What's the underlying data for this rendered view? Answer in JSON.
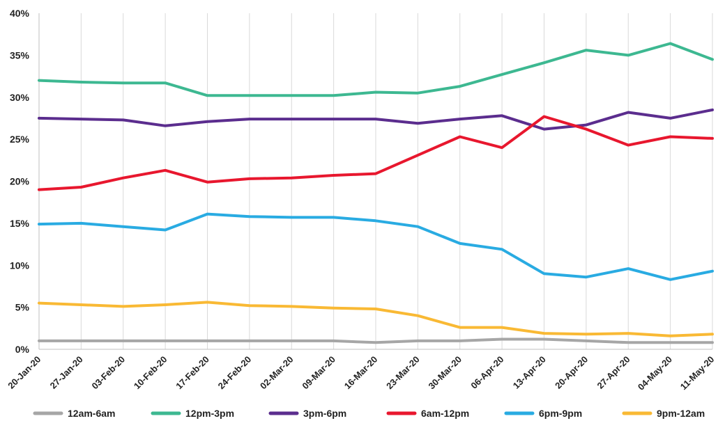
{
  "chart_data": {
    "type": "line",
    "title": "",
    "xlabel": "",
    "ylabel": "",
    "ylim": [
      0,
      40
    ],
    "y_ticks": [
      "0%",
      "5%",
      "10%",
      "15%",
      "20%",
      "25%",
      "30%",
      "35%",
      "40%"
    ],
    "y_tick_values": [
      0,
      5,
      10,
      15,
      20,
      25,
      30,
      35,
      40
    ],
    "grid": "vertical",
    "legend_position": "bottom",
    "categories": [
      "20-Jan-20",
      "27-Jan-20",
      "03-Feb-20",
      "10-Feb-20",
      "17-Feb-20",
      "24-Feb-20",
      "02-Mar-20",
      "09-Mar-20",
      "16-Mar-20",
      "23-Mar-20",
      "30-Mar-20",
      "06-Apr-20",
      "13-Apr-20",
      "20-Apr-20",
      "27-Apr-20",
      "04-May-20",
      "11-May-20"
    ],
    "series": [
      {
        "name": "12am-6am",
        "color": "#a6a6a6",
        "values": [
          1.0,
          1.0,
          1.0,
          1.0,
          1.0,
          1.0,
          1.0,
          1.0,
          0.8,
          1.0,
          1.0,
          1.2,
          1.2,
          1.0,
          0.8,
          0.8,
          0.8
        ]
      },
      {
        "name": "12pm-3pm",
        "color": "#3db891",
        "values": [
          32.0,
          31.8,
          31.7,
          31.7,
          30.2,
          30.2,
          30.2,
          30.2,
          30.6,
          30.5,
          31.3,
          32.7,
          34.1,
          35.6,
          35.0,
          36.4,
          34.5
        ]
      },
      {
        "name": "3pm-6pm",
        "color": "#5b2d8e",
        "values": [
          27.5,
          27.4,
          27.3,
          26.6,
          27.1,
          27.4,
          27.4,
          27.4,
          27.4,
          26.9,
          27.4,
          27.8,
          26.2,
          26.7,
          28.2,
          27.5,
          28.5
        ]
      },
      {
        "name": "6am-12pm",
        "color": "#e8172e",
        "values": [
          19.0,
          19.3,
          20.4,
          21.3,
          19.9,
          20.3,
          20.4,
          20.7,
          20.9,
          23.1,
          25.3,
          24.0,
          27.7,
          26.2,
          24.3,
          25.3,
          25.1
        ]
      },
      {
        "name": "6pm-9pm",
        "color": "#29abe2",
        "values": [
          14.9,
          15.0,
          14.6,
          14.2,
          16.1,
          15.8,
          15.7,
          15.7,
          15.3,
          14.6,
          12.6,
          11.9,
          9.0,
          8.6,
          9.6,
          8.3,
          9.3
        ]
      },
      {
        "name": "9pm-12am",
        "color": "#f9b934",
        "values": [
          5.5,
          5.3,
          5.1,
          5.3,
          5.6,
          5.2,
          5.1,
          4.9,
          4.8,
          4.0,
          2.6,
          2.6,
          1.9,
          1.8,
          1.9,
          1.6,
          1.8
        ]
      }
    ]
  }
}
